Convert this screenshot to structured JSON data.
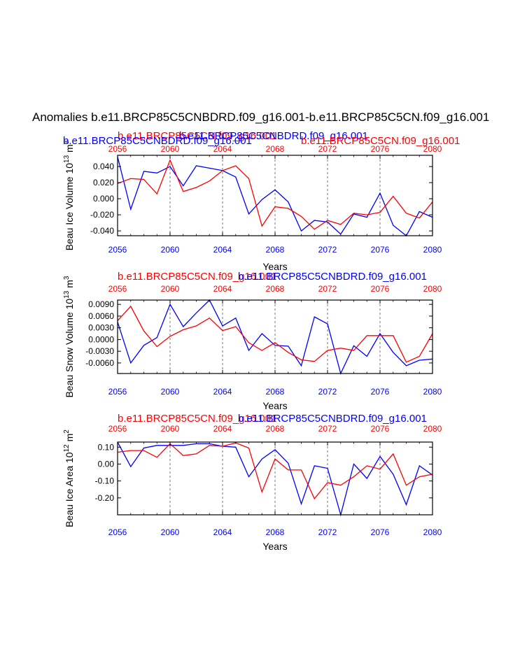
{
  "figure": {
    "main_title": "Anomalies b.e11.BRCP85C5CNBDRD.f09_g16.001-b.e11.BRCP85C5CN.f09_g16.001"
  },
  "colors": {
    "blue": "#0000ff",
    "red": "#ff0000",
    "axis": "#000000",
    "grid": "#555555"
  },
  "chart_data": [
    {
      "type": "line",
      "ylabel": "Beau Ice Volume 10",
      "ylabel_sup1": "13",
      "ylabel_unit": " m",
      "ylabel_sup2": "3",
      "xlabel": "Years",
      "top_labels": [
        {
          "text": "b.e11.BRCP85C5CN.f09_g16.001",
          "color": "#ff0000"
        },
        {
          "text": "b.e11.BRCP85C5CNBDRD.f09_g16.001",
          "color": "#0000ff"
        },
        {
          "text": "b.e11.BRCP85C5CNBDRD.f09_g16.001",
          "color": "#0000ff"
        },
        {
          "text": "b.e11.BRCP85C5CN.f09_g16.001",
          "color": "#ff0000"
        }
      ],
      "xlim": [
        2056,
        2080
      ],
      "ylim": [
        -0.046,
        0.054
      ],
      "xticks": [
        2056,
        2060,
        2064,
        2068,
        2072,
        2076,
        2080
      ],
      "xtick_labels": [
        "2056",
        "2060",
        "2064",
        "2068",
        "2072",
        "2076",
        "2080"
      ],
      "yticks": [
        0.04,
        0.02,
        0.0,
        -0.02,
        -0.04
      ],
      "ytick_labels": [
        "0.040",
        "0.020",
        "0.000",
        "-0.020",
        "-0.040"
      ],
      "grid_x": [
        2060,
        2064,
        2068,
        2072,
        2076
      ],
      "x": [
        2056,
        2057,
        2058,
        2059,
        2060,
        2061,
        2062,
        2063,
        2064,
        2065,
        2066,
        2067,
        2068,
        2069,
        2070,
        2071,
        2072,
        2073,
        2074,
        2075,
        2076,
        2077,
        2078,
        2079,
        2080
      ],
      "series": [
        {
          "color": "#0000ff",
          "values": [
            0.052,
            -0.013,
            0.034,
            0.032,
            0.04,
            0.016,
            0.041,
            0.038,
            0.035,
            0.027,
            -0.019,
            -0.001,
            0.011,
            -0.004,
            -0.04,
            -0.027,
            -0.029,
            -0.044,
            -0.019,
            -0.023,
            0.007,
            -0.033,
            -0.046,
            -0.016,
            -0.023
          ]
        },
        {
          "color": "#ff0000",
          "values": [
            0.019,
            0.025,
            0.024,
            0.006,
            0.048,
            0.009,
            0.014,
            0.022,
            0.035,
            0.041,
            0.025,
            -0.034,
            -0.01,
            -0.012,
            -0.022,
            -0.038,
            -0.027,
            -0.032,
            -0.018,
            -0.02,
            -0.017,
            0.003,
            -0.018,
            -0.024,
            -0.004
          ]
        }
      ]
    },
    {
      "type": "line",
      "ylabel": "Beau Snow Volume 10",
      "ylabel_sup1": "13",
      "ylabel_unit": " m",
      "ylabel_sup2": "3",
      "xlabel": "Years",
      "top_labels": [
        {
          "text": "b.e11.BRCP85C5CN.f09_g16.001",
          "color": "#ff0000"
        },
        {
          "text": "b.e11.BRCP85C5CNBDRD.f09_g16.001",
          "color": "#0000ff"
        }
      ],
      "xlim": [
        2056,
        2080
      ],
      "ylim": [
        -0.0087,
        0.0101
      ],
      "xticks": [
        2056,
        2060,
        2064,
        2068,
        2072,
        2076,
        2080
      ],
      "xtick_labels": [
        "2056",
        "2060",
        "2064",
        "2068",
        "2072",
        "2076",
        "2080"
      ],
      "yticks": [
        0.009,
        0.006,
        0.003,
        0.0,
        -0.003,
        -0.006
      ],
      "ytick_labels": [
        "0.0090",
        "0.0060",
        "0.0030",
        "0.0000",
        "-0.0030",
        "-0.0060"
      ],
      "grid_x": [
        2060,
        2064,
        2068,
        2072,
        2076
      ],
      "x": [
        2056,
        2057,
        2058,
        2059,
        2060,
        2061,
        2062,
        2063,
        2064,
        2065,
        2066,
        2067,
        2068,
        2069,
        2070,
        2071,
        2072,
        2073,
        2074,
        2075,
        2076,
        2077,
        2078,
        2079,
        2080
      ],
      "series": [
        {
          "color": "#0000ff",
          "values": [
            0.0045,
            -0.006,
            -0.0015,
            0.0005,
            0.009,
            0.0033,
            0.0068,
            0.0101,
            0.0035,
            0.0055,
            -0.0028,
            0.0015,
            -0.0015,
            -0.0017,
            -0.0067,
            0.0058,
            0.004,
            -0.0087,
            -0.0016,
            -0.0043,
            0.0015,
            -0.0033,
            -0.0067,
            -0.0053,
            -0.005
          ]
        },
        {
          "color": "#ff0000",
          "values": [
            0.0048,
            0.0085,
            0.0022,
            -0.0018,
            0.0008,
            0.0025,
            0.0035,
            0.0055,
            0.0023,
            0.0033,
            -0.0008,
            -0.0028,
            -0.0008,
            -0.0033,
            -0.0052,
            -0.0056,
            -0.0028,
            -0.0022,
            -0.0028,
            0.001,
            0.001,
            0.001,
            -0.0058,
            -0.0043,
            0.0015
          ]
        }
      ]
    },
    {
      "type": "line",
      "ylabel": "Beau Ice Area 10",
      "ylabel_sup1": "12",
      "ylabel_unit": " m",
      "ylabel_sup2": "2",
      "xlabel": "Years",
      "top_labels": [
        {
          "text": "b.e11.BRCP85C5CN.f09_g16.001",
          "color": "#ff0000"
        },
        {
          "text": "b.e11.BRCP85C5CNBDRD.f09_g16.001",
          "color": "#0000ff"
        }
      ],
      "xlim": [
        2056,
        2080
      ],
      "ylim": [
        -0.3,
        0.13
      ],
      "xticks": [
        2056,
        2060,
        2064,
        2068,
        2072,
        2076,
        2080
      ],
      "xtick_labels": [
        "2056",
        "2060",
        "2064",
        "2068",
        "2072",
        "2076",
        "2080"
      ],
      "yticks": [
        0.1,
        0.0,
        -0.1,
        -0.2
      ],
      "ytick_labels": [
        "0.10",
        "0.00",
        "-0.10",
        "-0.20"
      ],
      "grid_x": [
        2060,
        2064,
        2068,
        2072,
        2076
      ],
      "x": [
        2056,
        2057,
        2058,
        2059,
        2060,
        2061,
        2062,
        2063,
        2064,
        2065,
        2066,
        2067,
        2068,
        2069,
        2070,
        2071,
        2072,
        2073,
        2074,
        2075,
        2076,
        2077,
        2078,
        2079,
        2080
      ],
      "series": [
        {
          "color": "#0000ff",
          "values": [
            0.13,
            -0.015,
            0.095,
            0.11,
            0.11,
            0.11,
            0.12,
            0.12,
            0.105,
            0.1,
            -0.075,
            0.03,
            0.085,
            0.005,
            -0.235,
            -0.01,
            -0.025,
            -0.3,
            0.0,
            -0.085,
            0.045,
            -0.06,
            -0.24,
            -0.01,
            -0.065
          ]
        },
        {
          "color": "#ff0000",
          "values": [
            0.07,
            0.08,
            0.08,
            0.04,
            0.12,
            0.05,
            0.06,
            0.11,
            0.105,
            0.125,
            0.095,
            -0.165,
            0.03,
            -0.035,
            -0.035,
            -0.205,
            -0.11,
            -0.125,
            -0.075,
            -0.01,
            -0.03,
            0.06,
            -0.125,
            -0.075,
            -0.06
          ]
        }
      ]
    }
  ]
}
